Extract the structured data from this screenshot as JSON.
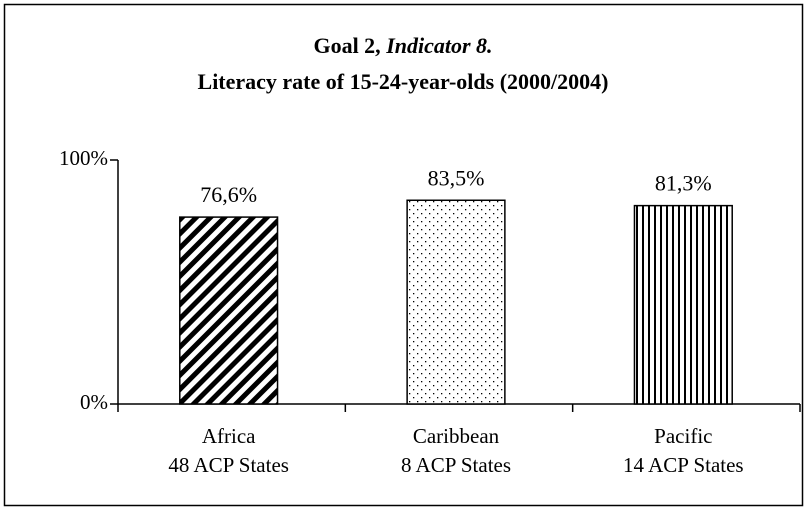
{
  "chart_data": {
    "type": "bar",
    "title": [
      "Goal 2,",
      "Indicator 8."
    ],
    "subtitle": "Literacy rate of 15-24-year-olds (2000/2004)",
    "categories": [
      [
        "Africa",
        "48 ACP States"
      ],
      [
        "Caribbean",
        "8 ACP States"
      ],
      [
        "Pacific",
        "14 ACP States"
      ]
    ],
    "values": [
      76.6,
      83.5,
      81.3
    ],
    "value_labels": [
      "76,6%",
      "83,5%",
      "81,3%"
    ],
    "patterns": [
      "diagonal",
      "dots",
      "vertical"
    ],
    "color": "#000000",
    "ylim": [
      0,
      100
    ],
    "yticks": [
      {
        "value": 0,
        "label": "0%"
      },
      {
        "value": 100,
        "label": "100%"
      }
    ],
    "grid": false
  }
}
